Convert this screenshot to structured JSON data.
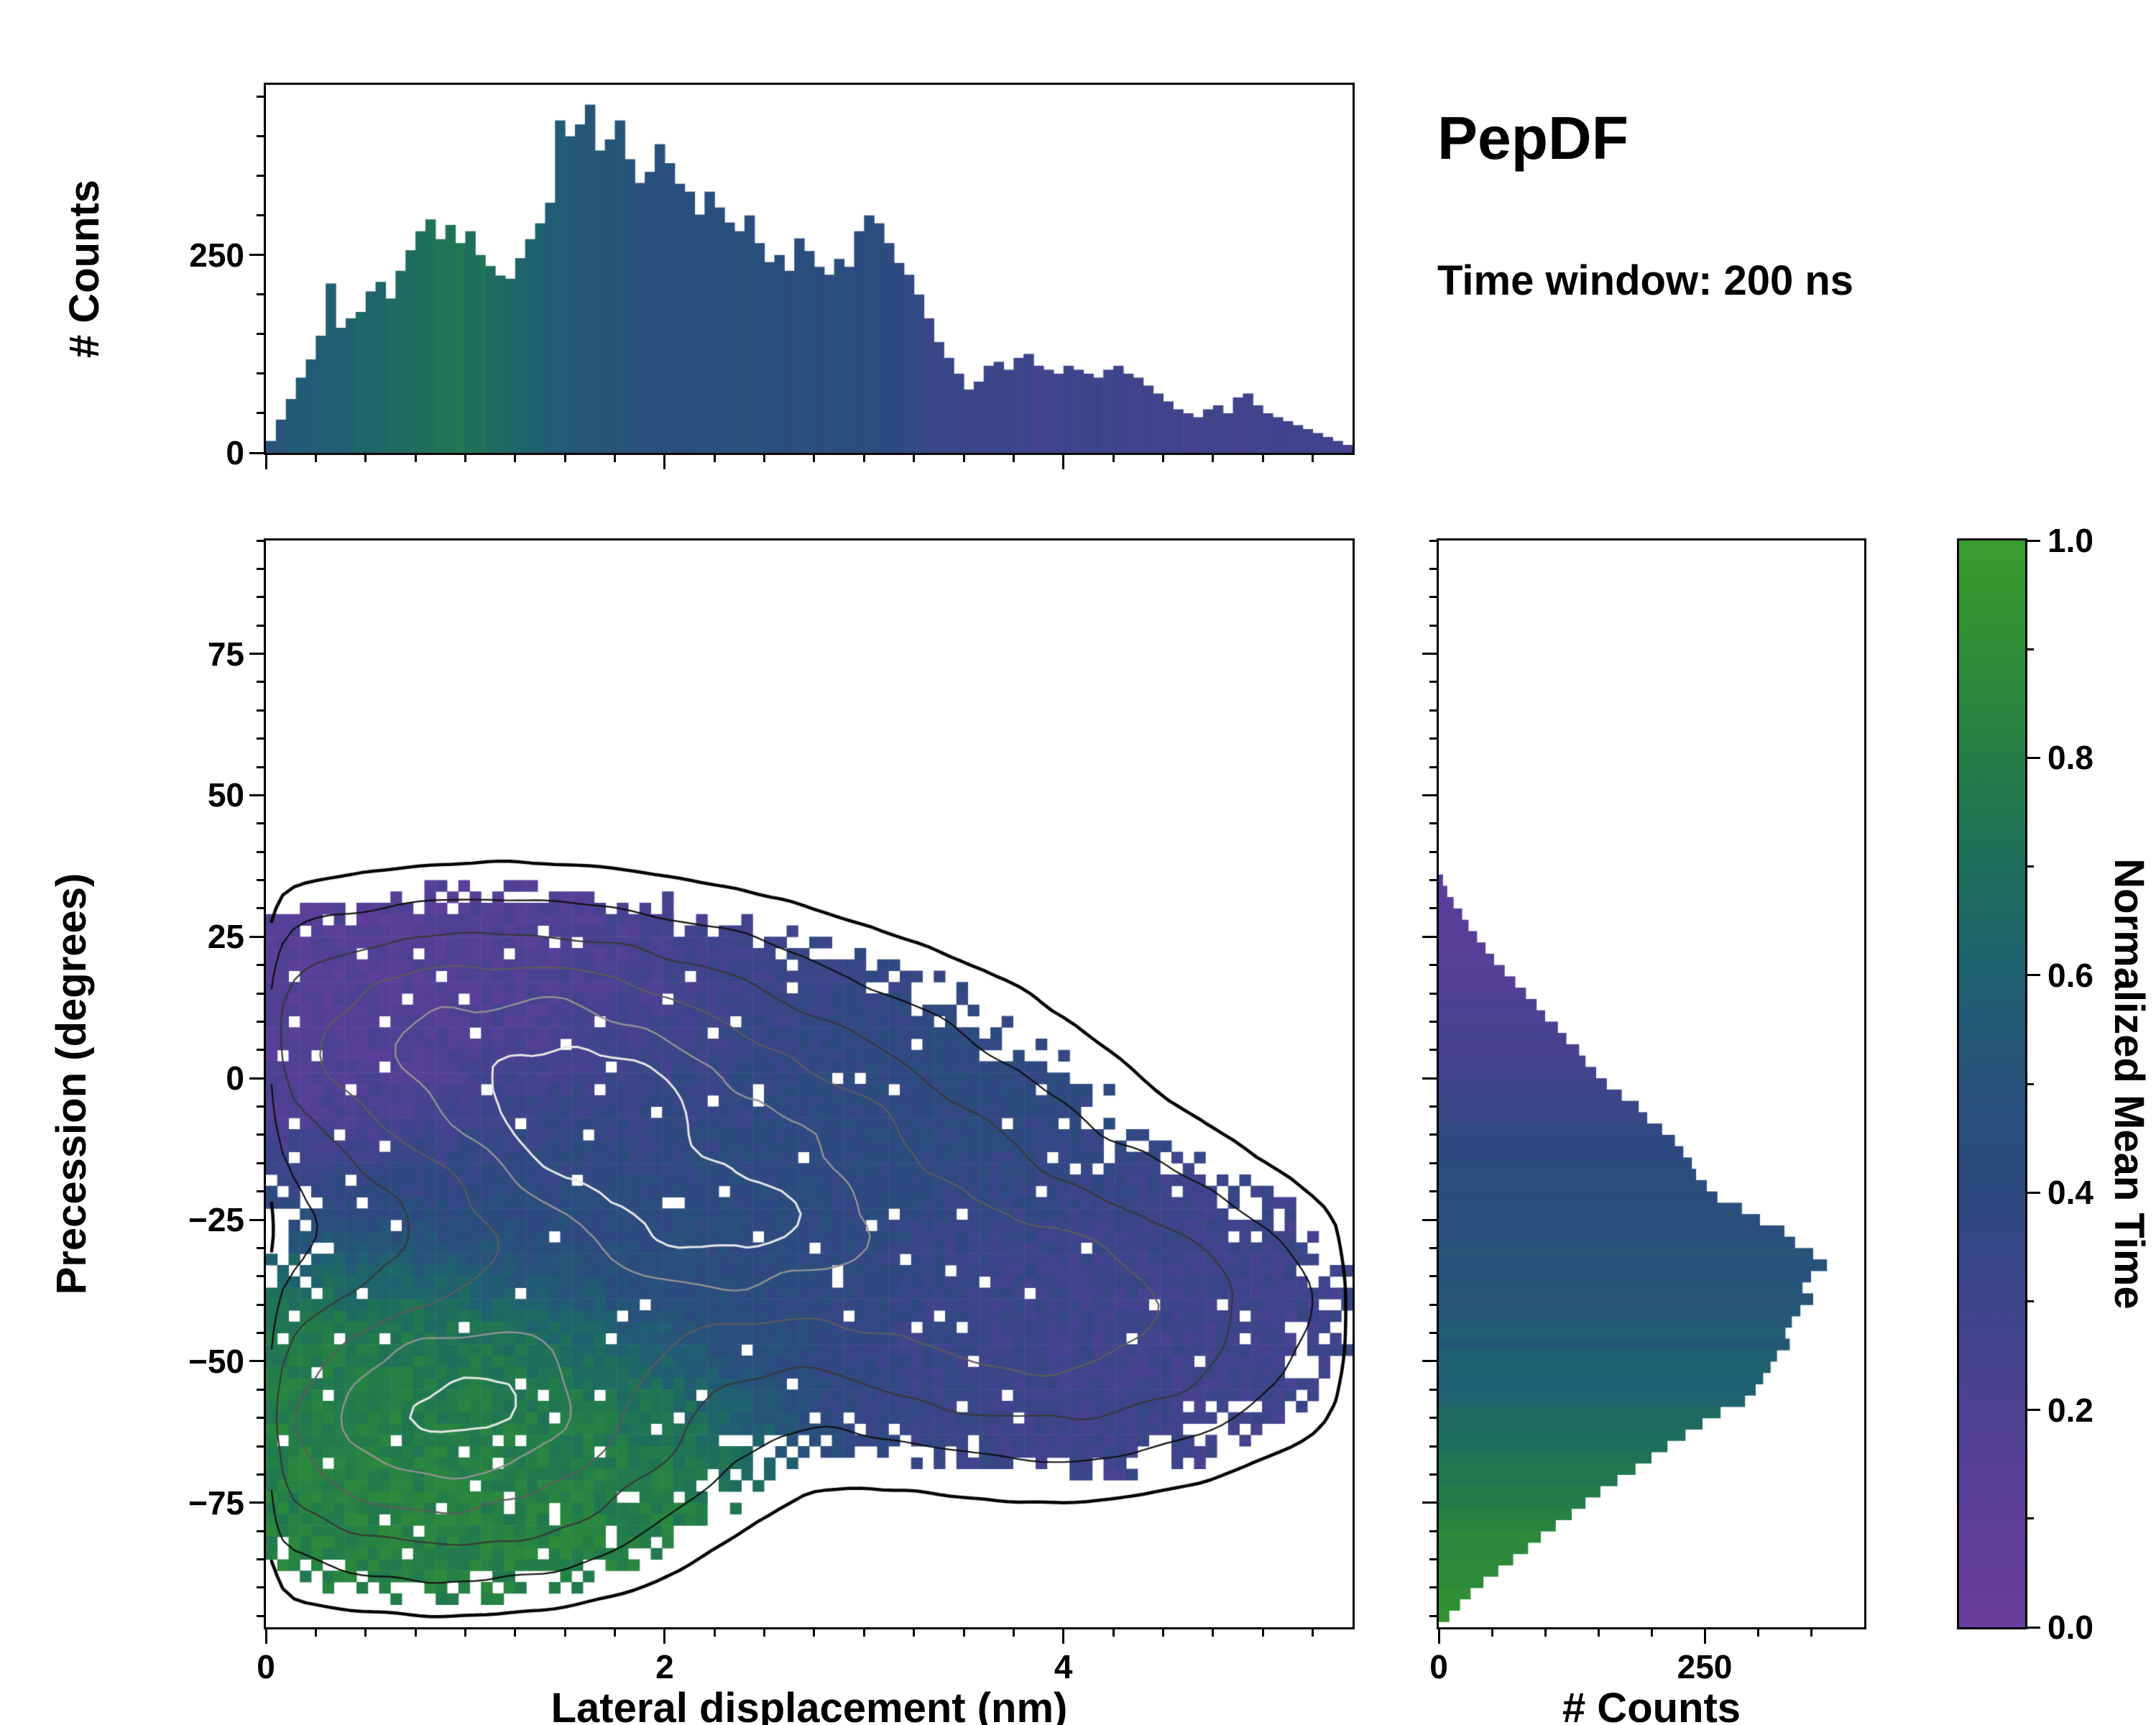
{
  "chart_data": {
    "type": "heatmap",
    "title": "PepDF",
    "subtitle": "Time window: 200 ns",
    "colormap": {
      "label": "Normalized Mean Time",
      "ticks": [
        0.0,
        0.2,
        0.4,
        0.6,
        0.8,
        1.0
      ],
      "tick_labels": [
        "0.0",
        "0.2",
        "0.4",
        "0.6",
        "0.8",
        "1.0"
      ],
      "stops": [
        [
          0.0,
          "#6b3d9e"
        ],
        [
          0.12,
          "#5a3f99"
        ],
        [
          0.25,
          "#45428f"
        ],
        [
          0.4,
          "#2e4a80"
        ],
        [
          0.5,
          "#27527b"
        ],
        [
          0.6,
          "#1f6070"
        ],
        [
          0.7,
          "#1e6f5c"
        ],
        [
          0.8,
          "#247f47"
        ],
        [
          0.9,
          "#2f8e36"
        ],
        [
          1.0,
          "#3a9c2e"
        ]
      ]
    },
    "main": {
      "xlabel": "Lateral displacement (nm)",
      "ylabel": "Precession (degrees)",
      "xlim": [
        0,
        5.45
      ],
      "ylim": [
        -97,
        95
      ],
      "xticks": [
        0,
        2,
        4
      ],
      "xtick_labels": [
        "0",
        "2",
        "4"
      ],
      "yticks": [
        75,
        50,
        25,
        0,
        -25,
        -50,
        -75
      ],
      "ytick_labels": [
        "75",
        "50",
        "25",
        "0",
        "−25",
        "−50",
        "−75"
      ],
      "grid_nx": 96,
      "grid_ny": 96,
      "seed": 1337,
      "occupancy_threshold": 0.098,
      "hole_prob": 0.03,
      "t_noise": 0.12,
      "clusters": [
        {
          "cx": 1.0,
          "cy": 8,
          "sx": 0.85,
          "sy": 13,
          "w": 0.85,
          "t": 0.13
        },
        {
          "cx": 2.2,
          "cy": -18,
          "sx": 1.0,
          "sy": 20,
          "w": 1.0,
          "t": 0.42
        },
        {
          "cx": 4.0,
          "cy": -42,
          "sx": 0.75,
          "sy": 15,
          "w": 0.75,
          "t": 0.28
        },
        {
          "cx": 0.9,
          "cy": -62,
          "sx": 0.75,
          "sy": 15,
          "w": 0.95,
          "t": 0.82
        },
        {
          "cx": 1.55,
          "cy": -8,
          "sx": 0.35,
          "sy": 8,
          "w": 0.5,
          "t": 0.38
        },
        {
          "cx": 2.3,
          "cy": -27,
          "sx": 0.45,
          "sy": 9,
          "w": 0.3,
          "t": 0.45
        },
        {
          "cx": 1.0,
          "cy": -55,
          "sx": 0.5,
          "sy": 10,
          "w": 0.35,
          "t": 0.75
        }
      ],
      "contour_levels": [
        {
          "level": 0.05,
          "color": "#000000",
          "width": 4.5
        },
        {
          "level": 0.13,
          "color": "#101010",
          "width": 2.2
        },
        {
          "level": 0.26,
          "color": "#383838",
          "width": 2.2
        },
        {
          "level": 0.42,
          "color": "#5c5c5c",
          "width": 2.2
        },
        {
          "level": 0.6,
          "color": "#939393",
          "width": 2.4
        },
        {
          "level": 0.78,
          "color": "#e8e8e8",
          "width": 3.0
        }
      ]
    },
    "top_histogram": {
      "ylabel": "# Counts",
      "yticks": [
        0,
        250
      ],
      "ytick_labels": [
        "0",
        "250"
      ],
      "ylim": [
        0,
        465
      ],
      "bin_start": 0.0,
      "bin_width": 0.05,
      "values": [
        15,
        42,
        68,
        95,
        118,
        148,
        214,
        158,
        170,
        178,
        204,
        216,
        195,
        230,
        256,
        280,
        295,
        270,
        288,
        265,
        280,
        250,
        236,
        224,
        220,
        246,
        270,
        290,
        316,
        420,
        400,
        415,
        440,
        382,
        396,
        420,
        371,
        341,
        355,
        390,
        366,
        340,
        330,
        301,
        330,
        310,
        291,
        280,
        300,
        265,
        241,
        250,
        230,
        271,
        255,
        235,
        225,
        245,
        235,
        280,
        300,
        290,
        265,
        240,
        225,
        200,
        170,
        140,
        120,
        100,
        80,
        90,
        110,
        115,
        105,
        120,
        125,
        110,
        105,
        100,
        110,
        105,
        100,
        95,
        105,
        110,
        100,
        95,
        85,
        75,
        65,
        55,
        50,
        45,
        55,
        60,
        50,
        70,
        75,
        60,
        50,
        45,
        40,
        35,
        30,
        25,
        20,
        15,
        10
      ],
      "color_points": [
        [
          0.0,
          0.52
        ],
        [
          0.3,
          0.58
        ],
        [
          0.6,
          0.66
        ],
        [
          0.9,
          0.74
        ],
        [
          1.15,
          0.7
        ],
        [
          1.35,
          0.6
        ],
        [
          1.6,
          0.52
        ],
        [
          2.0,
          0.48
        ],
        [
          2.6,
          0.46
        ],
        [
          3.0,
          0.44
        ],
        [
          3.25,
          0.36
        ],
        [
          3.5,
          0.3
        ],
        [
          4.0,
          0.29
        ],
        [
          4.5,
          0.28
        ],
        [
          5.45,
          0.26
        ]
      ]
    },
    "right_histogram": {
      "xlabel": "# Counts",
      "xticks": [
        0,
        250
      ],
      "xtick_labels": [
        "0",
        "250"
      ],
      "xlim": [
        0,
        400
      ],
      "y_start": 36,
      "bin_height": 2,
      "values": [
        4,
        8,
        14,
        22,
        28,
        36,
        44,
        52,
        62,
        72,
        82,
        92,
        100,
        112,
        120,
        132,
        138,
        148,
        158,
        172,
        188,
        196,
        210,
        222,
        230,
        238,
        242,
        252,
        262,
        285,
        302,
        325,
        335,
        352,
        365,
        350,
        342,
        352,
        340,
        332,
        326,
        330,
        318,
        312,
        305,
        298,
        288,
        265,
        248,
        232,
        215,
        200,
        185,
        168,
        152,
        138,
        125,
        110,
        96,
        84,
        70,
        56,
        42,
        30,
        20,
        10
      ],
      "color_points": [
        [
          36,
          0.1
        ],
        [
          20,
          0.15
        ],
        [
          5,
          0.25
        ],
        [
          -10,
          0.38
        ],
        [
          -25,
          0.47
        ],
        [
          -40,
          0.53
        ],
        [
          -52,
          0.6
        ],
        [
          -62,
          0.68
        ],
        [
          -72,
          0.78
        ],
        [
          -82,
          0.86
        ],
        [
          -96,
          0.93
        ]
      ]
    }
  }
}
